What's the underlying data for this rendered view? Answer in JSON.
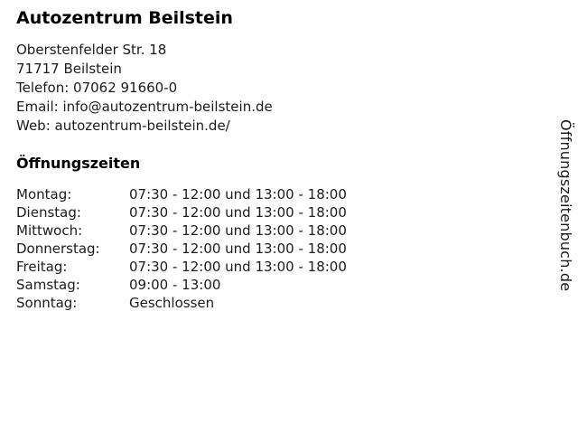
{
  "header": {
    "title": "Autozentrum Beilstein"
  },
  "contact": {
    "street": "Oberstenfelder Str. 18",
    "city": "71717 Beilstein",
    "phone": "Telefon: 07062 91660-0",
    "email": "Email: info@autozentrum-beilstein.de",
    "web": "Web: autozentrum-beilstein.de/"
  },
  "hours": {
    "heading": "Öffnungszeiten",
    "rows": [
      {
        "day": "Montag:",
        "time": "07:30 - 12:00 und 13:00 - 18:00"
      },
      {
        "day": "Dienstag:",
        "time": "07:30 - 12:00 und 13:00 - 18:00"
      },
      {
        "day": "Mittwoch:",
        "time": "07:30 - 12:00 und 13:00 - 18:00"
      },
      {
        "day": "Donnerstag:",
        "time": "07:30 - 12:00 und 13:00 - 18:00"
      },
      {
        "day": "Freitag:",
        "time": "07:30 - 12:00 und 13:00 - 18:00"
      },
      {
        "day": "Samstag:",
        "time": "09:00 - 13:00"
      },
      {
        "day": "Sonntag:",
        "time": "Geschlossen"
      }
    ]
  },
  "watermark": {
    "text": "Öffnungszeitenbuch.de"
  },
  "colors": {
    "background": "#ffffff",
    "text": "#1c1c1c",
    "heading": "#000000"
  }
}
